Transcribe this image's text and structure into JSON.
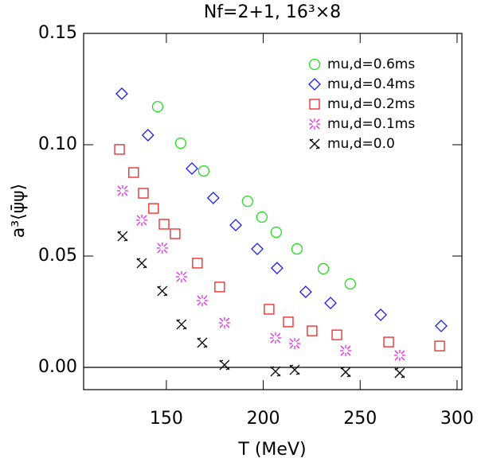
{
  "chart_data": {
    "type": "scatter",
    "title": "Nf=2+1, 16³×8",
    "xlabel": "T (MeV)",
    "ylabel": "a³⟨ψ̄ψ⟩",
    "xlim": [
      107.3,
      302.5
    ],
    "ylim": [
      -0.01,
      0.15
    ],
    "xticks": [
      150,
      200,
      250,
      300
    ],
    "yticks": [
      {
        "value": 0,
        "label": "0.00"
      },
      {
        "value": 0.05,
        "label": "0.05"
      },
      {
        "value": 0.1,
        "label": "0.10"
      },
      {
        "value": 0.15,
        "label": "0.15"
      }
    ],
    "zero_line": true,
    "legend": "upper right",
    "series": [
      {
        "name": "mu,d=0.6ms",
        "color": "#22dd22",
        "marker": "circle",
        "x": [
          145.5,
          157.4,
          169.3,
          191.9,
          199.3,
          206.7,
          217.4,
          231.0,
          244.9
        ],
        "values": [
          0.1171,
          0.1007,
          0.0882,
          0.0746,
          0.0675,
          0.0607,
          0.0532,
          0.0443,
          0.0375
        ]
      },
      {
        "name": "mu,d=0.4ms",
        "color": "#1a1aee",
        "marker": "diamond",
        "x": [
          127.0,
          140.5,
          163.2,
          174.2,
          185.8,
          196.9,
          207.1,
          221.9,
          234.7,
          260.6,
          291.8
        ],
        "values": [
          0.1229,
          0.1043,
          0.0893,
          0.0761,
          0.0639,
          0.0532,
          0.0446,
          0.0339,
          0.0289,
          0.0236,
          0.0186
        ]
      },
      {
        "name": "mu,d=0.2ms",
        "color": "#ee2222",
        "marker": "square",
        "x": [
          125.8,
          133.1,
          138.1,
          143.4,
          148.8,
          154.5,
          166.0,
          177.5,
          203.0,
          212.9,
          225.2,
          238.0,
          264.7,
          291.0
        ],
        "values": [
          0.0979,
          0.0875,
          0.0782,
          0.0714,
          0.0643,
          0.06,
          0.0468,
          0.0361,
          0.0261,
          0.0204,
          0.0164,
          0.0146,
          0.0114,
          0.0096
        ]
      },
      {
        "name": "mu,d=0.1ms",
        "color": "#ee22ee",
        "marker": "asterisk",
        "x": [
          127.4,
          137.3,
          147.9,
          157.8,
          168.5,
          180.0,
          206.3,
          216.2,
          242.5,
          270.4
        ],
        "values": [
          0.0793,
          0.0661,
          0.0536,
          0.0407,
          0.03,
          0.02,
          0.0132,
          0.0107,
          0.0075,
          0.0054
        ]
      },
      {
        "name": "mu,d=0.0",
        "color": "#000000",
        "marker": "cross",
        "x": [
          127.4,
          137.3,
          147.9,
          157.8,
          168.5,
          180.0,
          206.3,
          216.2,
          242.5,
          270.4
        ],
        "values": [
          0.0589,
          0.0468,
          0.0343,
          0.0193,
          0.0111,
          0.0011,
          -0.0018,
          -0.0011,
          -0.0021,
          -0.0025
        ]
      }
    ]
  }
}
